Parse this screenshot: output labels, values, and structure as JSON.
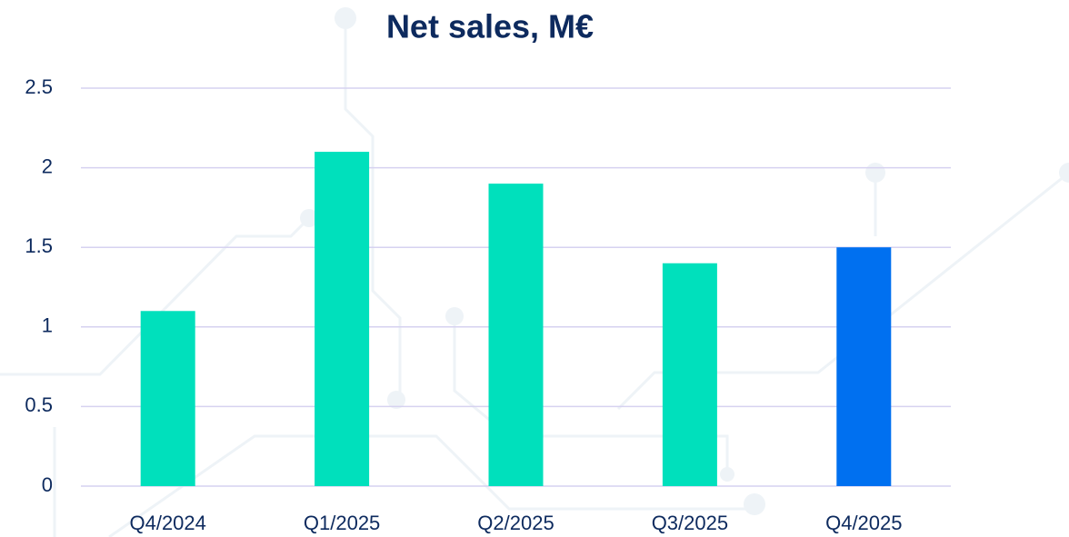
{
  "chart_data": {
    "type": "bar",
    "title": "Net sales, M€",
    "categories": [
      "Q4/2024",
      "Q1/2025",
      "Q2/2025",
      "Q3/2025",
      "Q4/2025"
    ],
    "values": [
      1.1,
      2.1,
      1.9,
      1.4,
      1.5
    ],
    "colors": [
      "#00e0bc",
      "#00e0bc",
      "#00e0bc",
      "#00e0bc",
      "#0070f0"
    ],
    "ylim": [
      0,
      2.5
    ],
    "yticks": [
      0,
      0.5,
      1,
      1.5,
      2,
      2.5
    ],
    "grid": true
  }
}
